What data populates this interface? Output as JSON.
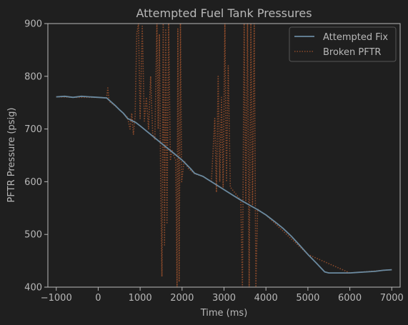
{
  "chart_data": {
    "type": "line",
    "title": "Attempted Fuel Tank Pressures",
    "xlabel": "Time (ms)",
    "ylabel": "PFTR Pressure (psig)",
    "xlim": [
      -1200,
      7200
    ],
    "ylim": [
      400,
      900
    ],
    "xticks": [
      -1000,
      0,
      1000,
      2000,
      3000,
      4000,
      5000,
      6000,
      7000
    ],
    "xtick_labels": [
      "−1000",
      "0",
      "1000",
      "2000",
      "3000",
      "4000",
      "5000",
      "6000",
      "7000"
    ],
    "yticks": [
      400,
      500,
      600,
      700,
      800,
      900
    ],
    "ytick_labels": [
      "400",
      "500",
      "600",
      "700",
      "800",
      "900"
    ],
    "grid": false,
    "legend": {
      "placement": "top-right"
    },
    "colors": {
      "background": "#1f1f1f",
      "axis": "#b8b8b8",
      "fix": "#6b8aa0",
      "broken": "#8b4a2a"
    },
    "series": [
      {
        "name": "Attempted Fix",
        "style": "solid",
        "x": [
          -1000,
          -800,
          -600,
          -400,
          -200,
          0,
          200,
          300,
          400,
          500,
          600,
          700,
          800,
          900,
          1000,
          1200,
          1400,
          1600,
          1800,
          2000,
          2100,
          2200,
          2300,
          2400,
          2500,
          2600,
          2800,
          3000,
          3200,
          3400,
          3600,
          3800,
          4000,
          4200,
          4400,
          4600,
          4800,
          5000,
          5200,
          5400,
          5500,
          5600,
          5800,
          6000,
          6200,
          6400,
          6600,
          6800,
          7000
        ],
        "y": [
          761,
          762,
          760,
          762,
          761,
          760,
          759,
          752,
          745,
          737,
          730,
          720,
          716,
          712,
          706,
          693,
          680,
          667,
          654,
          641,
          633,
          625,
          616,
          613,
          610,
          605,
          595,
          585,
          575,
          565,
          556,
          547,
          537,
          525,
          512,
          497,
          480,
          462,
          446,
          429,
          427,
          427,
          427,
          427,
          428,
          429,
          430,
          432,
          433
        ]
      },
      {
        "name": "Broken PFTR",
        "style": "dotted",
        "x": [
          -1000,
          -500,
          0,
          200,
          230,
          260,
          300,
          400,
          500,
          600,
          700,
          760,
          800,
          840,
          880,
          920,
          960,
          1000,
          1050,
          1100,
          1150,
          1200,
          1250,
          1300,
          1350,
          1400,
          1430,
          1460,
          1490,
          1520,
          1550,
          1580,
          1610,
          1640,
          1680,
          1720,
          1760,
          1800,
          1850,
          1880,
          1900,
          1930,
          1960,
          1990,
          2050,
          2150,
          2300,
          2500,
          2700,
          2780,
          2820,
          2860,
          2900,
          2940,
          2980,
          3020,
          3060,
          3100,
          3150,
          3200,
          3300,
          3400,
          3440,
          3480,
          3520,
          3560,
          3600,
          3640,
          3680,
          3720,
          3760,
          3800,
          3900,
          4000,
          5000,
          6000,
          7000
        ],
        "y": [
          761,
          760,
          760,
          759,
          778,
          752,
          750,
          744,
          737,
          730,
          722,
          700,
          730,
          690,
          725,
          880,
          900,
          720,
          895,
          715,
          760,
          700,
          800,
          690,
          680,
          900,
          700,
          880,
          600,
          420,
          900,
          480,
          890,
          520,
          900,
          640,
          660,
          650,
          640,
          400,
          890,
          410,
          900,
          600,
          640,
          625,
          615,
          610,
          600,
          720,
          580,
          800,
          600,
          760,
          590,
          900,
          600,
          820,
          590,
          585,
          575,
          565,
          400,
          900,
          560,
          900,
          400,
          900,
          555,
          900,
          400,
          548,
          542,
          537,
          462,
          427,
          433
        ]
      }
    ]
  }
}
